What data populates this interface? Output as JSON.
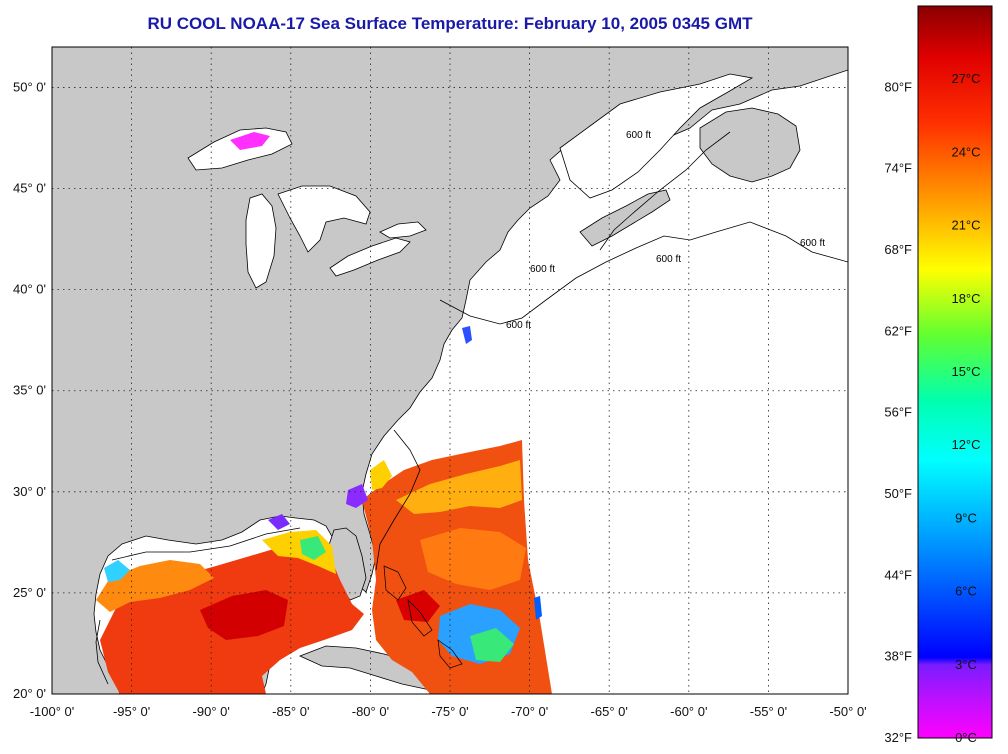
{
  "title": "RU COOL  NOAA-17  Sea Surface Temperature:  February 10, 2005 0345 GMT",
  "map": {
    "projection": "equirectangular",
    "lon_range": [
      -100,
      -50
    ],
    "lat_range": [
      20,
      52
    ],
    "lon_ticks": [
      "-100° 0'",
      "-95° 0'",
      "-90° 0'",
      "-85° 0'",
      "-80° 0'",
      "-75° 0'",
      "-70° 0'",
      "-65° 0'",
      "-60° 0'",
      "-55° 0'",
      "-50° 0'"
    ],
    "lat_ticks": [
      "20° 0'",
      "25° 0'",
      "30° 0'",
      "35° 0'",
      "40° 0'",
      "45° 0'",
      "50° 0'"
    ],
    "isobath_label": "600 ft",
    "land_color": "#c8c8c8",
    "water_color": "#ffffff",
    "grid": "dotted"
  },
  "colorbar": {
    "celsius_labels": [
      "27°C",
      "24°C",
      "21°C",
      "18°C",
      "15°C",
      "12°C",
      "9°C",
      "6°C",
      "3°C",
      "0°C"
    ],
    "fahrenheit_labels": [
      "80°F",
      "74°F",
      "68°F",
      "62°F",
      "56°F",
      "50°F",
      "44°F",
      "38°F",
      "32°F"
    ],
    "colors": [
      "#ff00ff",
      "#7a1cff",
      "#0000ff",
      "#00c8ff",
      "#00ffd8",
      "#30ff40",
      "#ffff00",
      "#ffa000",
      "#ff3000",
      "#d80000",
      "#8a0000"
    ]
  }
}
